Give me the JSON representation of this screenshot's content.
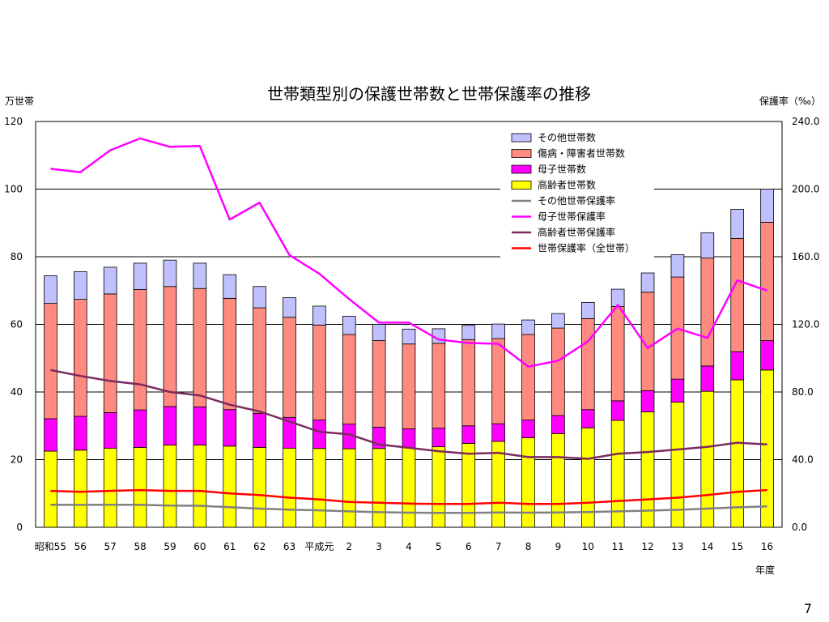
{
  "page_number": "7",
  "chart_data": {
    "type": "bar",
    "title": "世帯類型別の保護世帯数と世帯保護率の推移",
    "ylabel": "万世帯",
    "y2label": "保護率（‰）",
    "xlabel": "年度",
    "ylim": [
      0,
      120
    ],
    "yticks": [
      "0",
      "20",
      "40",
      "60",
      "80",
      "100",
      "120"
    ],
    "y2lim": [
      0,
      240
    ],
    "y2ticks": [
      "0.0",
      "40.0",
      "80.0",
      "120.0",
      "160.0",
      "200.0",
      "240.0"
    ],
    "grid": "horizontal",
    "legend_position": "top-right",
    "categories": [
      "昭和55",
      "56",
      "57",
      "58",
      "59",
      "60",
      "61",
      "62",
      "63",
      "平成元",
      "2",
      "3",
      "4",
      "5",
      "6",
      "7",
      "8",
      "9",
      "10",
      "11",
      "12",
      "13",
      "14",
      "15",
      "16"
    ],
    "stacked": true,
    "series": [
      {
        "name": "高齢者世帯数",
        "color": "#ffff00",
        "values": [
          22.5,
          22.8,
          23.4,
          23.6,
          24.3,
          24.3,
          24.0,
          23.6,
          23.4,
          23.3,
          23.2,
          23.3,
          23.5,
          23.8,
          24.8,
          25.4,
          26.5,
          27.7,
          29.4,
          31.6,
          34.1,
          37.0,
          40.2,
          43.6,
          46.5
        ]
      },
      {
        "name": "母子世帯数",
        "color": "#ff00ff",
        "values": [
          9.6,
          10.0,
          10.5,
          11.1,
          11.4,
          11.3,
          10.8,
          10.1,
          9.1,
          8.4,
          7.3,
          6.3,
          5.6,
          5.5,
          5.2,
          5.2,
          5.2,
          5.3,
          5.4,
          5.8,
          6.3,
          6.8,
          7.5,
          8.3,
          8.7
        ]
      },
      {
        "name": "傷病・障害者世帯数",
        "color": "#ff8a80",
        "values": [
          34.1,
          34.6,
          35.1,
          35.6,
          35.5,
          35.0,
          32.9,
          31.2,
          29.6,
          28.1,
          26.5,
          25.6,
          25.1,
          25.1,
          25.5,
          25.2,
          25.3,
          25.9,
          26.9,
          27.9,
          29.1,
          30.2,
          31.9,
          33.5,
          35.0
        ]
      },
      {
        "name": "その他世帯数",
        "color": "#c0c0ff",
        "values": [
          8.2,
          8.2,
          7.9,
          7.8,
          7.8,
          7.5,
          7.0,
          6.3,
          5.8,
          5.6,
          5.4,
          4.8,
          4.4,
          4.3,
          4.2,
          4.3,
          4.3,
          4.3,
          4.8,
          5.1,
          5.7,
          6.6,
          7.5,
          8.6,
          9.8
        ]
      }
    ],
    "rate_series": [
      {
        "name": "その他世帯保護率",
        "color": "#808080",
        "values": [
          13.3,
          13.2,
          13.3,
          13.3,
          12.8,
          12.7,
          11.9,
          11.0,
          10.4,
          10.0,
          9.4,
          8.9,
          8.6,
          8.5,
          8.5,
          8.7,
          8.6,
          8.7,
          9.0,
          9.4,
          9.8,
          10.3,
          11.0,
          11.8,
          12.3
        ]
      },
      {
        "name": "母子世帯保護率",
        "color": "#ff00ff",
        "values": [
          212.0,
          210.0,
          223.0,
          230.0,
          225.0,
          225.5,
          182.0,
          192.0,
          161.0,
          150.0,
          135.0,
          121.0,
          121.0,
          111.0,
          109.0,
          108.5,
          95.0,
          98.5,
          110.0,
          131.5,
          106.0,
          117.5,
          112.0,
          146.0,
          140.0
        ]
      },
      {
        "name": "高齢者世帯保護率",
        "color": "#7b2a5e",
        "values": [
          93.0,
          89.5,
          86.5,
          84.5,
          80.0,
          78.0,
          72.5,
          68.5,
          62.5,
          56.5,
          55.0,
          49.0,
          47.0,
          45.0,
          43.5,
          44.0,
          41.5,
          41.5,
          40.5,
          43.5,
          44.5,
          46.0,
          47.5,
          50.0,
          49.0
        ]
      },
      {
        "name": "世帯保護率（全世帯）",
        "color": "#ff0000",
        "values": [
          21.5,
          21.0,
          21.5,
          22.0,
          21.5,
          21.5,
          20.0,
          19.0,
          17.5,
          16.5,
          15.0,
          14.5,
          14.0,
          13.8,
          13.8,
          14.5,
          13.8,
          13.8,
          14.5,
          15.5,
          16.5,
          17.5,
          19.0,
          21.0,
          22.0
        ]
      }
    ],
    "legend_order": [
      "その他世帯数",
      "傷病・障害者世帯数",
      "母子世帯数",
      "高齢者世帯数",
      "その他世帯保護率",
      "母子世帯保護率",
      "高齢者世帯保護率",
      "世帯保護率（全世帯）"
    ]
  }
}
